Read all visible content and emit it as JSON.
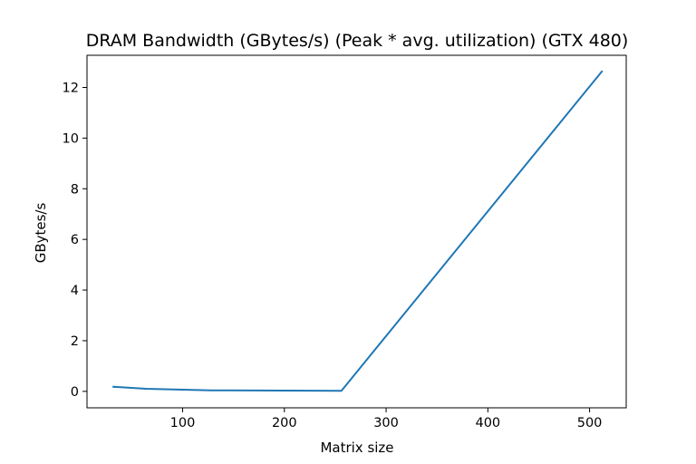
{
  "chart_data": {
    "type": "line",
    "title": "DRAM Bandwidth (GBytes/s) (Peak * avg. utilization) (GTX 480)",
    "xlabel": "Matrix size",
    "ylabel": "GBytes/s",
    "xlim": [
      6.0,
      536.0
    ],
    "ylim": [
      -0.65,
      13.27
    ],
    "xticks": [
      100,
      200,
      300,
      400,
      500
    ],
    "yticks": [
      0,
      2,
      4,
      6,
      8,
      10,
      12
    ],
    "x_tick_labels": [
      "100",
      "200",
      "300",
      "400",
      "500"
    ],
    "y_tick_labels": [
      "0",
      "2",
      "4",
      "6",
      "8",
      "10",
      "12"
    ],
    "grid": false,
    "series": [
      {
        "x": [
          32,
          64,
          128,
          256,
          512
        ],
        "values": [
          0.18,
          0.1,
          0.04,
          0.02,
          12.63
        ],
        "color": "#1f77b4"
      }
    ]
  }
}
